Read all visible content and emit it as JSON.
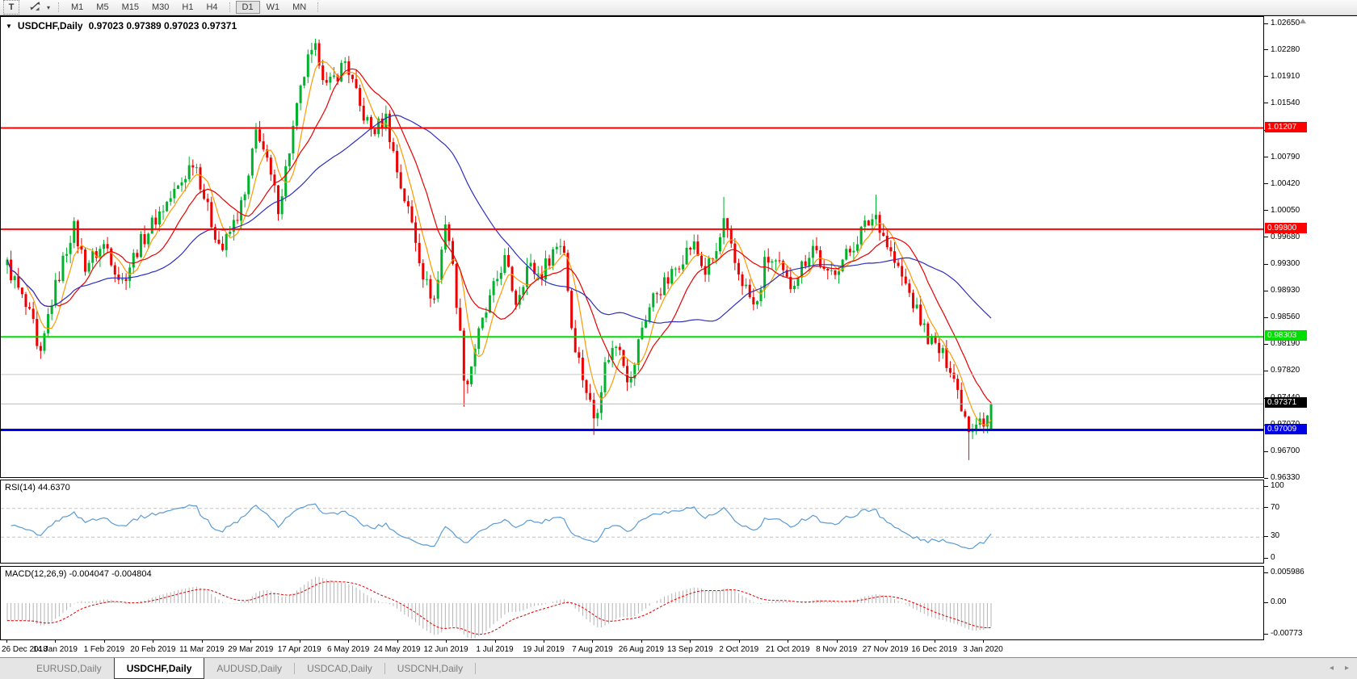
{
  "toolbar": {
    "text_tool_label": "T",
    "timeframes": [
      "M1",
      "M5",
      "M15",
      "M30",
      "H1",
      "H4",
      "D1",
      "W1",
      "MN"
    ],
    "active_timeframe": "D1"
  },
  "chart": {
    "title_symbol": "USDCHF,Daily",
    "title_ohlc": "0.97023 0.97389 0.97023 0.97371"
  },
  "tabs": {
    "items": [
      "EURUSD,Daily",
      "USDCHF,Daily",
      "AUDUSD,Daily",
      "USDCAD,Daily",
      "USDCNH,Daily"
    ],
    "active": "USDCHF,Daily"
  },
  "icons": {
    "tab_scroll_left": "◂",
    "tab_scroll_right": "▸",
    "title_dropdown": "▼",
    "tool_caret": "▾"
  },
  "chart_data": {
    "type": "candlestick",
    "symbol": "USDCHF",
    "timeframe": "Daily",
    "last_ohlc": {
      "open": 0.97023,
      "high": 0.97389,
      "low": 0.97023,
      "close": 0.97371
    },
    "price_axis_labels": [
      "1.02650",
      "1.02280",
      "1.01910",
      "1.01540",
      "1.01160",
      "1.00790",
      "1.00420",
      "1.00050",
      "0.99680",
      "0.99300",
      "0.98930",
      "0.98560",
      "0.98190",
      "0.97820",
      "0.97440",
      "0.97070",
      "0.96700",
      "0.96330"
    ],
    "price_axis_range": [
      0.9633,
      1.0265
    ],
    "date_labels": [
      "26 Dec 2018",
      "14 Jan 2019",
      "1 Feb 2019",
      "20 Feb 2019",
      "11 Mar 2019",
      "29 Mar 2019",
      "17 Apr 2019",
      "6 May 2019",
      "24 May 2019",
      "12 Jun 2019",
      "1 Jul 2019",
      "19 Jul 2019",
      "7 Aug 2019",
      "26 Aug 2019",
      "13 Sep 2019",
      "2 Oct 2019",
      "21 Oct 2019",
      "8 Nov 2019",
      "27 Nov 2019",
      "16 Dec 2019",
      "3 Jan 2020"
    ],
    "bars": 266,
    "candle_up_color": "#00b22c",
    "candle_down_color": "#ed0000",
    "moving_averages": [
      {
        "period": 6,
        "color": "#ff9900"
      },
      {
        "period": 14,
        "color": "#e80000"
      },
      {
        "period": 40,
        "color": "#2e2ec0"
      }
    ],
    "hlines": [
      {
        "price": 1.01207,
        "color": "#ff0000",
        "width": 2,
        "tag": "1.01207",
        "tag_text_color": "#ffffff"
      },
      {
        "price": 0.998,
        "color": "#ff0000",
        "width": 2,
        "tag": "0.99800",
        "tag_text_color": "#ffffff"
      },
      {
        "price": 0.98303,
        "color": "#00dd00",
        "width": 2,
        "tag": "0.98303",
        "tag_text_color": "#ffffff"
      },
      {
        "price": 0.9778,
        "color": "#c8c8c8",
        "width": 1,
        "tag": null,
        "tag_text_color": null
      },
      {
        "price": 0.97009,
        "color": "#0000e6",
        "width": 3,
        "tag": "0.97009",
        "tag_text_color": "#ffffff"
      }
    ],
    "current_price": {
      "value": 0.97371,
      "tag": "0.97371",
      "line_color": "#b8b8b8",
      "tag_bg": "#000000",
      "tag_text_color": "#ffffff"
    },
    "price_path_anchors": [
      [
        0.0,
        0.993
      ],
      [
        0.01,
        0.99
      ],
      [
        0.028,
        0.984
      ],
      [
        0.032,
        0.9785
      ],
      [
        0.043,
        0.987
      ],
      [
        0.067,
        0.9985
      ],
      [
        0.079,
        0.993
      ],
      [
        0.1,
        0.996
      ],
      [
        0.116,
        0.9905
      ],
      [
        0.133,
        0.9955
      ],
      [
        0.153,
        1.0
      ],
      [
        0.175,
        1.004
      ],
      [
        0.19,
        1.008
      ],
      [
        0.205,
        1.0
      ],
      [
        0.218,
        0.995
      ],
      [
        0.231,
        0.999
      ],
      [
        0.243,
        1.003
      ],
      [
        0.254,
        1.0125
      ],
      [
        0.266,
        1.006
      ],
      [
        0.276,
        1.001
      ],
      [
        0.292,
        1.013
      ],
      [
        0.304,
        1.021
      ],
      [
        0.315,
        1.023
      ],
      [
        0.325,
        1.0175
      ],
      [
        0.335,
        1.0195
      ],
      [
        0.344,
        1.0215
      ],
      [
        0.358,
        1.015
      ],
      [
        0.371,
        1.0115
      ],
      [
        0.385,
        1.0135
      ],
      [
        0.398,
        1.005
      ],
      [
        0.412,
        0.9985
      ],
      [
        0.425,
        0.9905
      ],
      [
        0.435,
        0.988
      ],
      [
        0.446,
        1.0
      ],
      [
        0.456,
        0.989
      ],
      [
        0.466,
        0.9755
      ],
      [
        0.476,
        0.982
      ],
      [
        0.488,
        0.987
      ],
      [
        0.505,
        0.994
      ],
      [
        0.517,
        0.988
      ],
      [
        0.529,
        0.993
      ],
      [
        0.542,
        0.9915
      ],
      [
        0.554,
        0.995
      ],
      [
        0.565,
        0.9965
      ],
      [
        0.574,
        0.984
      ],
      [
        0.584,
        0.978
      ],
      [
        0.597,
        0.9715
      ],
      [
        0.609,
        0.98
      ],
      [
        0.622,
        0.9825
      ],
      [
        0.633,
        0.976
      ],
      [
        0.644,
        0.984
      ],
      [
        0.658,
        0.989
      ],
      [
        0.673,
        0.991
      ],
      [
        0.685,
        0.994
      ],
      [
        0.697,
        0.996
      ],
      [
        0.709,
        0.992
      ],
      [
        0.722,
        0.995
      ],
      [
        0.728,
        0.999
      ],
      [
        0.74,
        0.993
      ],
      [
        0.75,
        0.99
      ],
      [
        0.761,
        0.9865
      ],
      [
        0.771,
        0.994
      ],
      [
        0.783,
        0.993
      ],
      [
        0.795,
        0.99
      ],
      [
        0.808,
        0.993
      ],
      [
        0.82,
        0.996
      ],
      [
        0.832,
        0.991
      ],
      [
        0.844,
        0.993
      ],
      [
        0.857,
        0.995
      ],
      [
        0.869,
        0.998
      ],
      [
        0.883,
        1.0
      ],
      [
        0.894,
        0.996
      ],
      [
        0.903,
        0.993
      ],
      [
        0.914,
        0.99
      ],
      [
        0.926,
        0.986
      ],
      [
        0.936,
        0.983
      ],
      [
        0.947,
        0.981
      ],
      [
        0.959,
        0.979
      ],
      [
        0.969,
        0.974
      ],
      [
        0.979,
        0.97
      ],
      [
        0.988,
        0.9725
      ],
      [
        0.993,
        0.9703
      ],
      [
        1.0,
        0.9737
      ]
    ],
    "key_bars": [
      {
        "frac": 0.315,
        "high": 1.0245
      },
      {
        "frac": 0.466,
        "low": 0.9733
      },
      {
        "frac": 0.597,
        "low": 0.9694
      },
      {
        "frac": 0.728,
        "high": 1.0025
      },
      {
        "frac": 0.883,
        "high": 1.0028
      },
      {
        "frac": 0.979,
        "low": 0.9659
      },
      {
        "frac": 1.0,
        "open": 0.97023,
        "high": 0.97389,
        "low": 0.97023,
        "close": 0.97371
      }
    ],
    "rsi": {
      "label": "RSI(14) 44.6370",
      "period": 14,
      "current": 44.637,
      "levels": [
        "100",
        "70",
        "30",
        "0"
      ],
      "level_values": [
        100,
        70,
        30,
        0
      ],
      "dashed_levels": [
        70,
        30
      ],
      "line_color": "#5b9bd5"
    },
    "macd": {
      "label": "MACD(12,26,9) -0.004047 -0.004804",
      "fast": 12,
      "slow": 26,
      "signal": 9,
      "current_macd": -0.004047,
      "current_signal": -0.004804,
      "axis_labels": [
        "0.005986",
        "0.00",
        "-0.00773"
      ],
      "axis_values": [
        0.005986,
        0,
        -0.00773
      ],
      "bar_color": "#b4b4b4",
      "signal_color": "#e00000"
    }
  }
}
